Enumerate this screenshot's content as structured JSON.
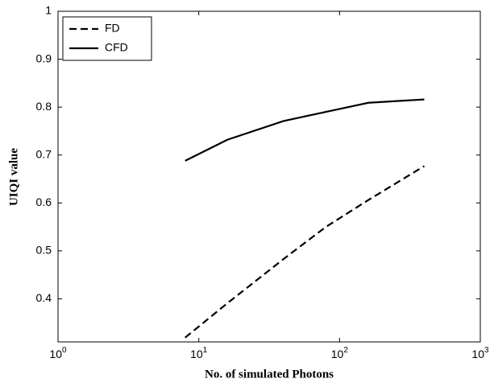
{
  "chart_data": {
    "type": "line",
    "xlabel": "No. of simulated Photons",
    "ylabel": "UIQI value",
    "x": [
      8,
      16,
      40,
      80,
      160,
      400
    ],
    "series": [
      {
        "name": "FD",
        "color": "#000000",
        "dash": "dashed",
        "values": [
          0.319,
          0.391,
          0.483,
          0.55,
          0.606,
          0.677
        ]
      },
      {
        "name": "CFD",
        "color": "#000000",
        "dash": "solid",
        "values": [
          0.688,
          0.732,
          0.771,
          0.79,
          0.809,
          0.816
        ]
      }
    ],
    "xscale": "log",
    "xlim": [
      1,
      1000
    ],
    "xticks": [
      {
        "value": 1,
        "label": "10^0"
      },
      {
        "value": 10,
        "label": "10^1"
      },
      {
        "value": 100,
        "label": "10^2"
      },
      {
        "value": 1000,
        "label": "10^3"
      }
    ],
    "ylim": [
      0.31,
      1
    ],
    "yticks": [
      0.4,
      0.5,
      0.6,
      0.7,
      0.8,
      0.9,
      1
    ],
    "legend": "upper-left",
    "grid": false
  }
}
